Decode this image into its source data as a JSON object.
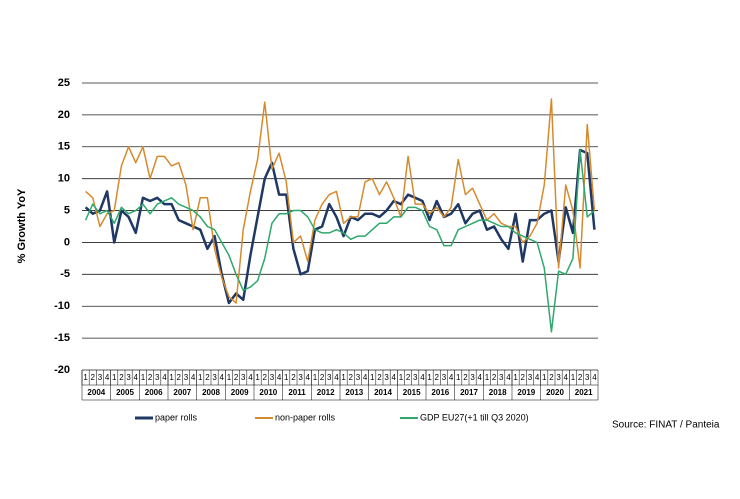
{
  "chart_data": {
    "type": "line",
    "y_label": "% Growth YoY",
    "source": "Source: FINAT / Panteia",
    "categories": [
      "1",
      "2",
      "3",
      "4",
      "1",
      "2",
      "3",
      "4",
      "1",
      "2",
      "3",
      "4",
      "1",
      "2",
      "3",
      "4",
      "1",
      "2",
      "3",
      "4",
      "1",
      "2",
      "3",
      "4",
      "1",
      "2",
      "3",
      "4",
      "1",
      "2",
      "3",
      "4",
      "1",
      "2",
      "3",
      "4",
      "1",
      "2",
      "3",
      "4",
      "1",
      "2",
      "3",
      "4",
      "1",
      "2",
      "3",
      "4",
      "1",
      "2",
      "3",
      "4",
      "1",
      "2",
      "3",
      "4",
      "1",
      "2",
      "3",
      "4",
      "1",
      "2",
      "3",
      "4",
      "1",
      "2",
      "3",
      "4",
      "1",
      "2",
      "3",
      "4"
    ],
    "years": [
      "2004",
      "2005",
      "2006",
      "2007",
      "2008",
      "2009",
      "2010",
      "2011",
      "2012",
      "2013",
      "2014",
      "2015",
      "2016",
      "2017",
      "2018",
      "2019",
      "2020",
      "2021"
    ],
    "ylim": [
      -20,
      25
    ],
    "yticks": [
      -20,
      -15,
      -10,
      -5,
      0,
      5,
      10,
      15,
      20,
      25
    ],
    "grid": true,
    "legend": "bottom",
    "series": [
      {
        "name": "paper rolls",
        "color": "#1f3864",
        "width": 2.5,
        "values": [
          5.5,
          4.5,
          5,
          8,
          0,
          5,
          4,
          1.5,
          7,
          6.5,
          7,
          6,
          6,
          3.5,
          3,
          2.5,
          2,
          -1,
          1,
          -5,
          -9.5,
          -8,
          -9,
          -2,
          4,
          10,
          12.5,
          7.5,
          7.5,
          -1,
          -5,
          -4.5,
          2,
          2.5,
          6,
          4,
          1,
          4,
          3.5,
          4.5,
          4.5,
          4,
          5,
          6.5,
          6,
          7.5,
          7,
          6.5,
          3.5,
          6.5,
          4,
          4.5,
          6,
          3,
          4.5,
          5,
          2,
          2.5,
          0.5,
          -1,
          4.5,
          -3,
          3.5,
          3.5,
          4.5,
          5,
          -3,
          5.5,
          1.5,
          14.5,
          14,
          2
        ]
      },
      {
        "name": "non-paper rolls",
        "color": "#d68a2e",
        "width": 1.5,
        "values": [
          8,
          7,
          2.5,
          4.5,
          5,
          12,
          15,
          12.5,
          15,
          10,
          13.5,
          13.5,
          12,
          12.5,
          9,
          2,
          7,
          7,
          -1,
          -5.5,
          -8.5,
          -9.5,
          2,
          8,
          13,
          22,
          11.5,
          14,
          9.5,
          0,
          1,
          -3,
          3.5,
          6,
          7.5,
          8,
          3,
          4,
          4,
          9.5,
          10,
          7.5,
          9.5,
          7,
          4,
          13.5,
          6,
          6,
          4.5,
          5.5,
          4,
          5.5,
          13,
          7.5,
          8.5,
          6,
          3.5,
          4.5,
          3,
          2.5,
          2.5,
          0,
          1,
          3,
          9,
          22.5,
          -4,
          9,
          5,
          -4,
          18.5,
          5
        ]
      },
      {
        "name": "GDP EU27(+1 till Q3 2020)",
        "color": "#2ea86b",
        "width": 1.5,
        "values": [
          3.5,
          6,
          4.5,
          5,
          3,
          5.5,
          4.5,
          5,
          6,
          4.5,
          6,
          6.5,
          7,
          6,
          5.5,
          5,
          4,
          2.5,
          2,
          0,
          -2,
          -5,
          -7.5,
          -7,
          -6,
          -2.5,
          3,
          4.5,
          4.5,
          5,
          5,
          4,
          2,
          1.5,
          1.5,
          2,
          1.5,
          0.5,
          1,
          1,
          2,
          3,
          3,
          4,
          4,
          5.5,
          5.5,
          5,
          2.5,
          2,
          -0.5,
          -0.5,
          2,
          2.5,
          3,
          3.5,
          3.5,
          3,
          2.5,
          2.5,
          1.5,
          1,
          0.5,
          0,
          -4,
          -14,
          -4.5,
          -5,
          -2.5,
          14.5,
          4,
          5
        ]
      }
    ]
  }
}
